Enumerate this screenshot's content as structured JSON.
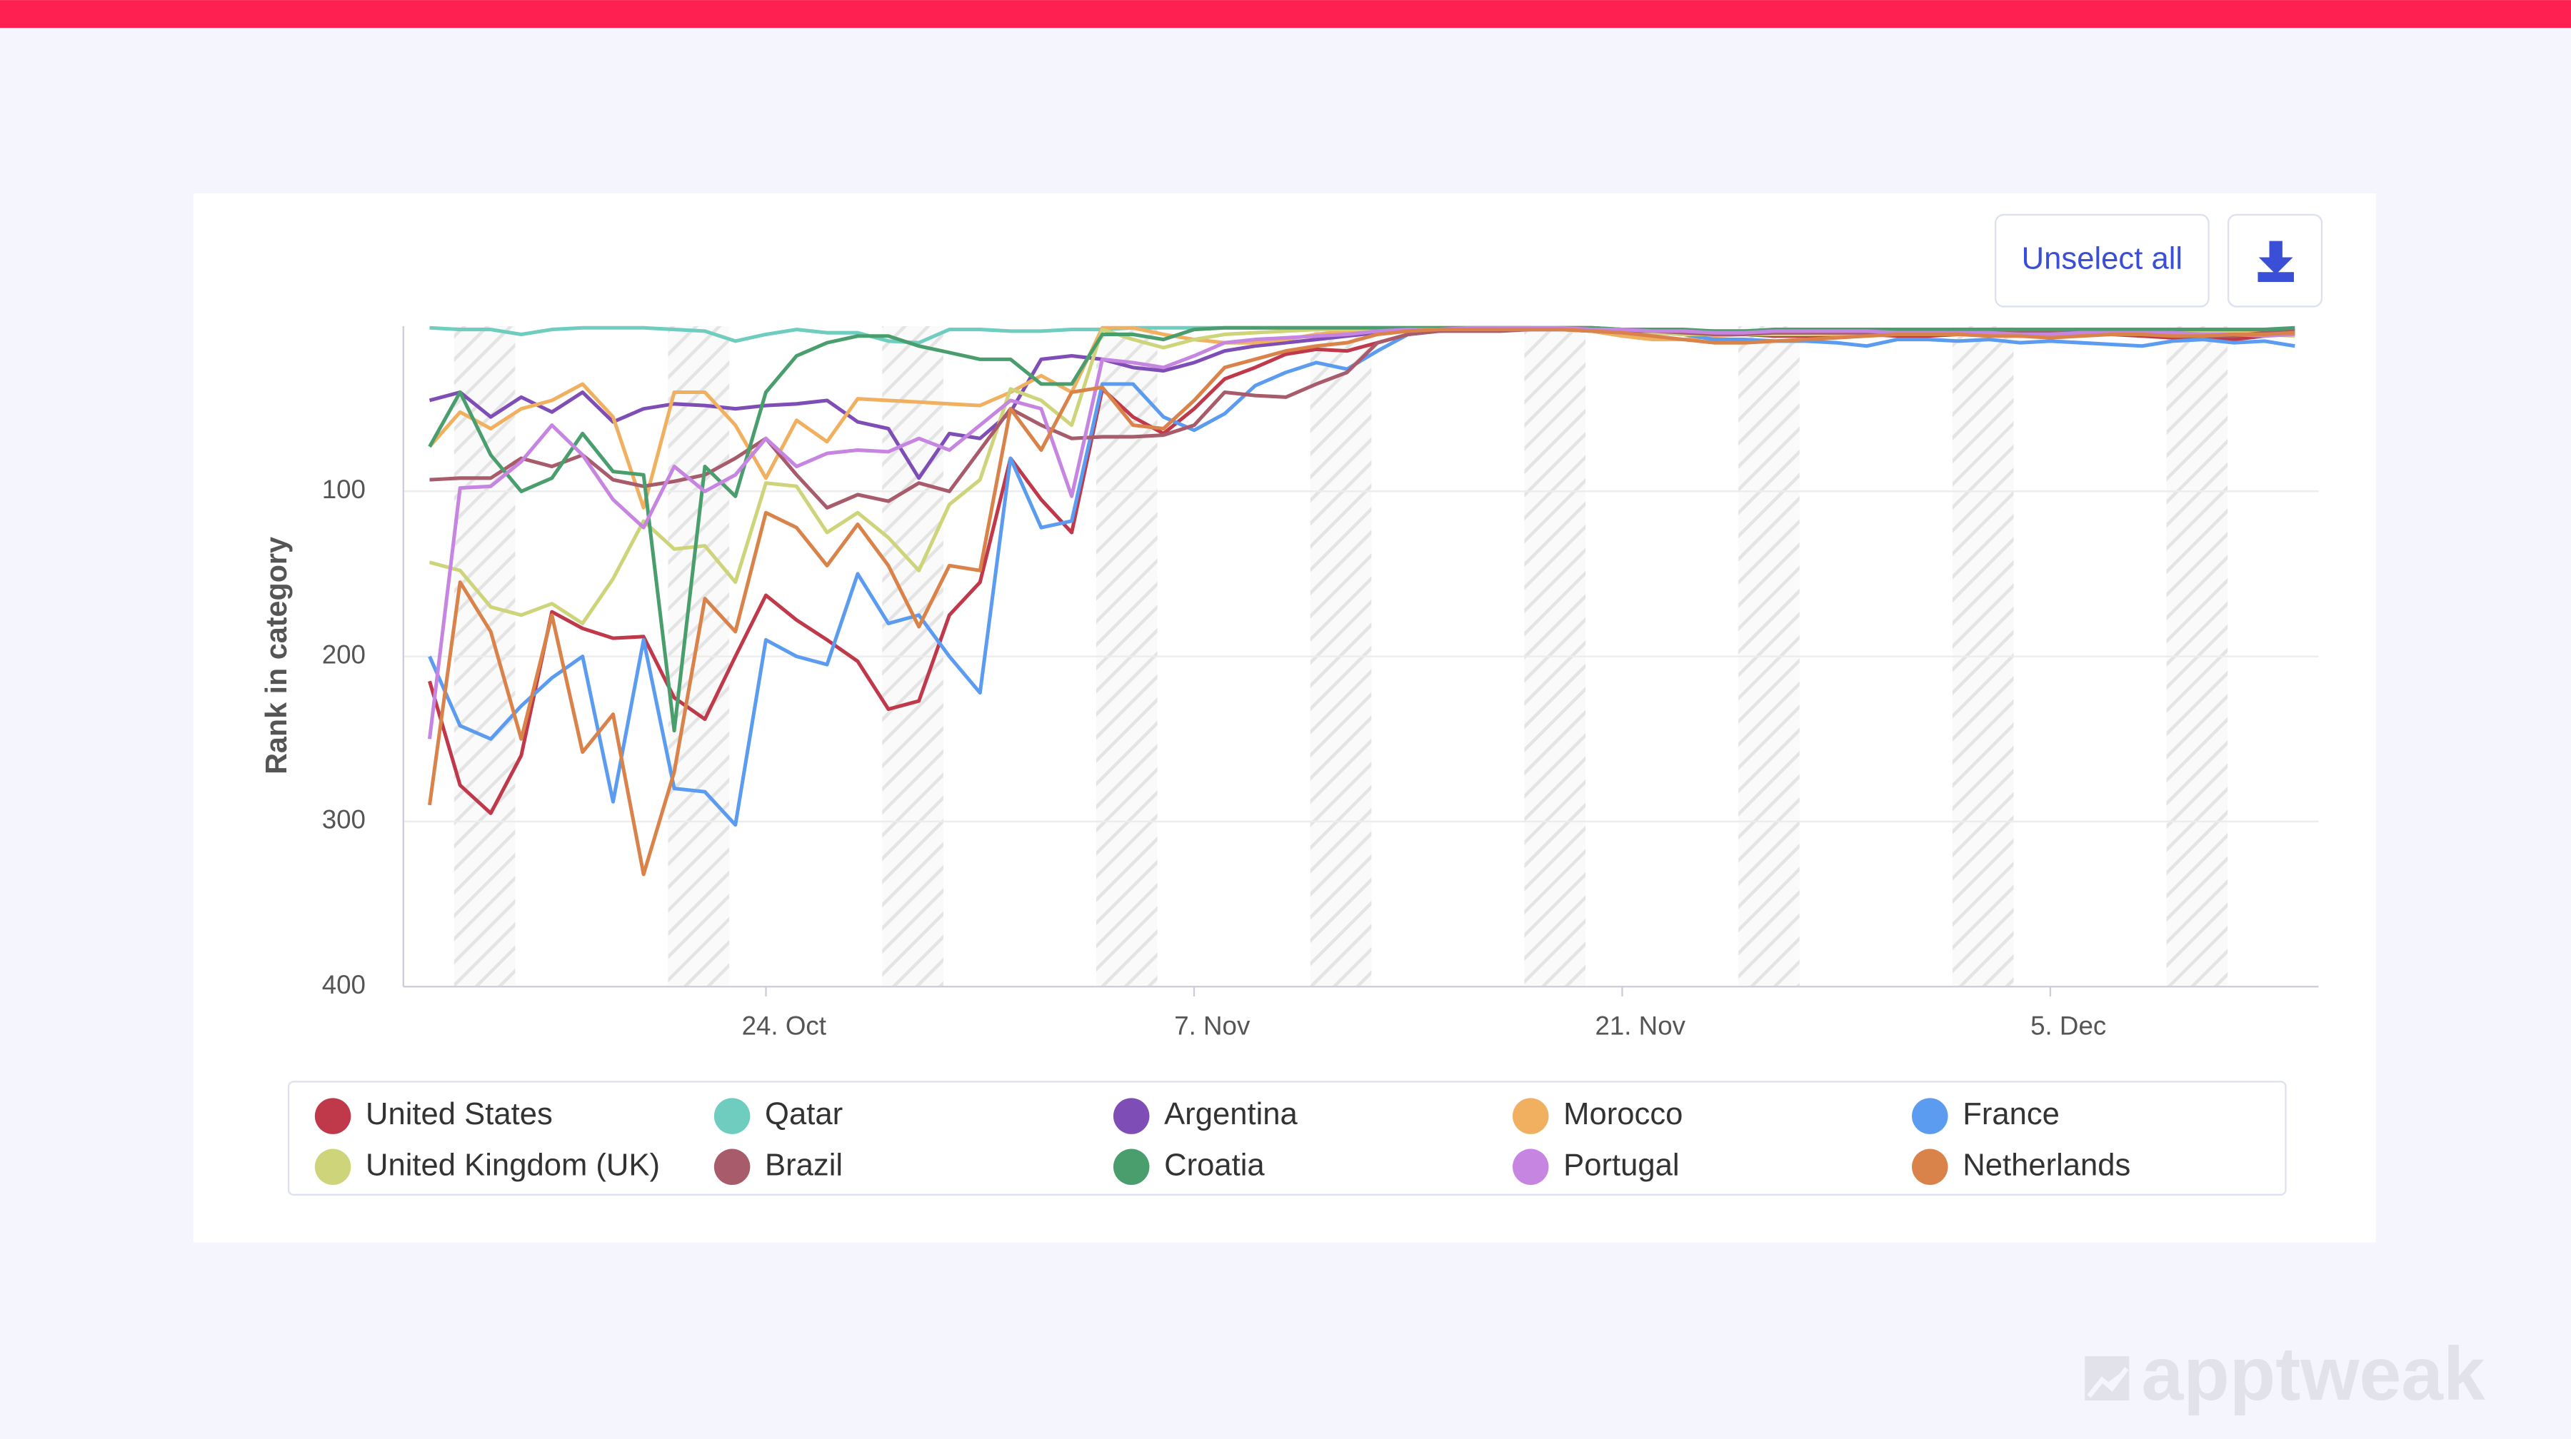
{
  "ui": {
    "button": "Unselect all",
    "watermark": "apptweak"
  },
  "chart_data": {
    "type": "line",
    "y_label": "Rank in category",
    "reversed": true,
    "grid": true,
    "ylim": [
      0,
      400
    ],
    "yticks": [
      100,
      200,
      300,
      400
    ],
    "x": [
      "Oct 13",
      "Oct 14",
      "Oct 15",
      "Oct 16",
      "Oct 17",
      "Oct 18",
      "Oct 19",
      "Oct 20",
      "Oct 21",
      "Oct 22",
      "Oct 23",
      "Oct 24",
      "Oct 25",
      "Oct 26",
      "Oct 27",
      "Oct 28",
      "Oct 29",
      "Oct 30",
      "Oct 31",
      "Nov 1",
      "Nov 2",
      "Nov 3",
      "Nov 4",
      "Nov 5",
      "Nov 6",
      "Nov 7",
      "Nov 8",
      "Nov 9",
      "Nov 10",
      "Nov 11",
      "Nov 12",
      "Nov 13",
      "Nov 14",
      "Nov 15",
      "Nov 16",
      "Nov 17",
      "Nov 18",
      "Nov 19",
      "Nov 20",
      "Nov 21",
      "Nov 22",
      "Nov 23",
      "Nov 24",
      "Nov 25",
      "Nov 26",
      "Nov 27",
      "Nov 28",
      "Nov 29",
      "Nov 30",
      "Dec 1",
      "Dec 2",
      "Dec 3",
      "Dec 4",
      "Dec 5",
      "Dec 6",
      "Dec 7",
      "Dec 8",
      "Dec 9",
      "Dec 10",
      "Dec 11",
      "Dec 12",
      "Dec 13"
    ],
    "xticks": [
      {
        "value": "Oct 24",
        "label": "24. Oct"
      },
      {
        "value": "Nov 7",
        "label": "7. Nov"
      },
      {
        "value": "Nov 21",
        "label": "21. Nov"
      },
      {
        "value": "Dec 5",
        "label": "5. Dec"
      }
    ],
    "series": [
      {
        "name": "United States",
        "color": "#c0394a",
        "values": [
          215,
          278,
          295,
          260,
          173,
          183,
          189,
          188,
          225,
          238,
          200,
          163,
          178,
          190,
          203,
          232,
          227,
          175,
          155,
          80,
          105,
          125,
          38,
          55,
          65,
          50,
          32,
          25,
          17,
          14,
          15,
          10,
          5,
          3,
          2,
          2,
          2,
          1,
          1,
          2,
          3,
          4,
          5,
          5,
          6,
          6,
          5,
          5,
          6,
          6,
          5,
          5,
          6,
          6,
          5,
          5,
          6,
          7,
          7,
          8,
          6,
          4
        ]
      },
      {
        "name": "Qatar",
        "color": "#6fcdc0",
        "values": [
          1,
          2,
          2,
          5,
          2,
          1,
          1,
          1,
          2,
          3,
          9,
          5,
          2,
          4,
          4,
          9,
          10,
          2,
          2,
          3,
          3,
          2,
          2,
          1,
          1,
          1,
          1,
          1,
          1,
          1,
          1,
          1,
          1,
          1,
          1,
          1,
          2,
          2,
          3,
          3,
          4,
          4,
          3,
          3,
          2,
          2,
          3,
          3,
          2,
          2,
          2,
          3,
          3,
          2,
          2,
          2,
          3,
          3,
          2,
          2,
          3,
          4
        ]
      },
      {
        "name": "Argentina",
        "color": "#7e4db5",
        "values": [
          45,
          40,
          55,
          43,
          52,
          40,
          58,
          50,
          47,
          48,
          50,
          48,
          47,
          45,
          58,
          62,
          92,
          65,
          68,
          52,
          20,
          18,
          20,
          25,
          27,
          22,
          15,
          12,
          10,
          8,
          6,
          4,
          3,
          2,
          2,
          2,
          2,
          2,
          2,
          2,
          2,
          3,
          3,
          3,
          3,
          3,
          3,
          2,
          2,
          3,
          3,
          3,
          3,
          3,
          3,
          3,
          3,
          3,
          3,
          3,
          3,
          3
        ]
      },
      {
        "name": "Morocco",
        "color": "#f0b060",
        "values": [
          73,
          52,
          62,
          50,
          45,
          35,
          55,
          110,
          40,
          40,
          60,
          92,
          57,
          70,
          44,
          45,
          46,
          47,
          48,
          40,
          30,
          40,
          1,
          1,
          5,
          8,
          10,
          10,
          8,
          5,
          3,
          2,
          2,
          1,
          1,
          1,
          1,
          2,
          3,
          6,
          8,
          8,
          6,
          5,
          5,
          5,
          5,
          5,
          4,
          4,
          5,
          5,
          4,
          4,
          5,
          5,
          4,
          4,
          3,
          3,
          3,
          4
        ]
      },
      {
        "name": "France",
        "color": "#5b9cf0",
        "values": [
          200,
          242,
          250,
          230,
          213,
          200,
          288,
          190,
          280,
          282,
          302,
          190,
          200,
          205,
          150,
          180,
          175,
          200,
          222,
          80,
          122,
          118,
          35,
          35,
          55,
          63,
          53,
          36,
          28,
          22,
          26,
          15,
          5,
          3,
          2,
          2,
          2,
          2,
          3,
          4,
          4,
          5,
          8,
          8,
          9,
          9,
          10,
          12,
          8,
          8,
          9,
          8,
          10,
          9,
          10,
          11,
          12,
          9,
          8,
          10,
          9,
          12
        ]
      },
      {
        "name": "United Kingdom (UK)",
        "color": "#cdd47a",
        "values": [
          143,
          148,
          170,
          175,
          168,
          180,
          153,
          118,
          135,
          133,
          155,
          95,
          97,
          125,
          113,
          128,
          148,
          108,
          93,
          38,
          45,
          60,
          2,
          8,
          13,
          8,
          5,
          4,
          3,
          2,
          2,
          2,
          2,
          1,
          1,
          1,
          1,
          2,
          3,
          3,
          4,
          5,
          5,
          5,
          5,
          5,
          4,
          4,
          4,
          5,
          5,
          4,
          4,
          5,
          5,
          4,
          4,
          3,
          3,
          4,
          5,
          6
        ]
      },
      {
        "name": "Brazil",
        "color": "#a85b6a",
        "values": [
          93,
          92,
          92,
          80,
          85,
          78,
          93,
          97,
          94,
          90,
          80,
          68,
          90,
          110,
          102,
          106,
          95,
          100,
          75,
          50,
          60,
          68,
          67,
          67,
          66,
          60,
          40,
          42,
          43,
          35,
          28,
          10,
          5,
          3,
          3,
          3,
          2,
          2,
          2,
          3,
          3,
          4,
          5,
          5,
          4,
          4,
          4,
          4,
          5,
          5,
          5,
          4,
          4,
          4,
          5,
          5,
          5,
          5,
          6,
          6,
          4,
          3
        ]
      },
      {
        "name": "Croatia",
        "color": "#4a9e6e",
        "values": [
          73,
          40,
          78,
          100,
          92,
          65,
          88,
          90,
          245,
          85,
          103,
          40,
          18,
          10,
          6,
          6,
          12,
          16,
          20,
          20,
          35,
          35,
          5,
          5,
          8,
          2,
          1,
          1,
          1,
          1,
          1,
          1,
          1,
          1,
          1,
          1,
          1,
          1,
          1,
          2,
          2,
          2,
          3,
          3,
          2,
          2,
          2,
          2,
          2,
          2,
          2,
          2,
          2,
          2,
          2,
          2,
          2,
          2,
          2,
          2,
          2,
          1
        ]
      },
      {
        "name": "Portugal",
        "color": "#c585e0",
        "values": [
          250,
          98,
          97,
          82,
          60,
          78,
          105,
          122,
          85,
          100,
          90,
          68,
          85,
          77,
          75,
          76,
          68,
          75,
          60,
          45,
          50,
          103,
          20,
          22,
          25,
          18,
          10,
          8,
          7,
          6,
          5,
          3,
          2,
          2,
          1,
          1,
          1,
          1,
          2,
          2,
          3,
          3,
          4,
          4,
          3,
          3,
          3,
          3,
          4,
          4,
          4,
          4,
          5,
          5,
          4,
          4,
          4,
          4,
          5,
          5,
          6,
          5
        ]
      },
      {
        "name": "Netherlands",
        "color": "#d9834a",
        "values": [
          290,
          155,
          185,
          250,
          175,
          258,
          235,
          332,
          270,
          165,
          185,
          113,
          122,
          145,
          120,
          145,
          182,
          145,
          148,
          50,
          75,
          40,
          37,
          60,
          62,
          45,
          25,
          20,
          15,
          12,
          10,
          5,
          3,
          2,
          2,
          2,
          2,
          2,
          3,
          4,
          6,
          8,
          10,
          10,
          9,
          8,
          7,
          6,
          5,
          5,
          5,
          6,
          6,
          7,
          6,
          5,
          5,
          6,
          6,
          5,
          5,
          4
        ]
      }
    ]
  }
}
